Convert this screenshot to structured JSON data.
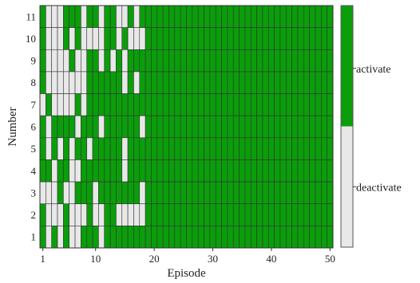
{
  "chart_data": {
    "type": "heatmap",
    "xlabel": "Episode",
    "ylabel": "Number",
    "x_ticks": [
      1,
      10,
      20,
      30,
      40,
      50
    ],
    "x_range": [
      1,
      50
    ],
    "y_categories": [
      "1",
      "2",
      "3",
      "4",
      "5",
      "6",
      "7",
      "8",
      "9",
      "10",
      "11"
    ],
    "legend": {
      "position": "right",
      "entries": [
        {
          "label": "activate",
          "value": 1,
          "color": "#0a9e0a"
        },
        {
          "label": "deactivate",
          "value": 0,
          "color": "#e8e8e8"
        }
      ]
    },
    "colors": {
      "activate": "#0a9e0a",
      "deactivate": "#e8e8e8",
      "grid": "#333333"
    },
    "grid": true,
    "rows": [
      {
        "number": "11",
        "values": [
          1,
          0,
          0,
          0,
          1,
          1,
          1,
          0,
          1,
          1,
          0,
          1,
          1,
          0,
          0,
          1,
          0,
          1,
          1,
          1,
          1,
          1,
          1,
          1,
          1,
          1,
          1,
          1,
          1,
          1,
          1,
          1,
          1,
          1,
          1,
          1,
          1,
          1,
          1,
          1,
          1,
          1,
          1,
          1,
          1,
          1,
          1,
          1,
          1,
          1
        ]
      },
      {
        "number": "10",
        "values": [
          1,
          0,
          0,
          0,
          1,
          0,
          1,
          0,
          0,
          0,
          0,
          1,
          1,
          0,
          1,
          0,
          0,
          0,
          1,
          1,
          1,
          1,
          1,
          1,
          1,
          1,
          1,
          1,
          1,
          1,
          1,
          1,
          1,
          1,
          1,
          1,
          1,
          1,
          1,
          1,
          1,
          1,
          1,
          1,
          1,
          1,
          1,
          1,
          1,
          1
        ]
      },
      {
        "number": "9",
        "values": [
          1,
          0,
          0,
          0,
          0,
          1,
          0,
          0,
          1,
          1,
          0,
          1,
          0,
          1,
          0,
          1,
          1,
          1,
          1,
          1,
          1,
          1,
          1,
          1,
          1,
          1,
          1,
          1,
          1,
          1,
          1,
          1,
          1,
          1,
          1,
          1,
          1,
          1,
          1,
          1,
          1,
          1,
          1,
          1,
          1,
          1,
          1,
          1,
          1,
          1
        ]
      },
      {
        "number": "8",
        "values": [
          1,
          0,
          0,
          0,
          0,
          0,
          0,
          0,
          1,
          1,
          1,
          1,
          1,
          1,
          0,
          1,
          0,
          1,
          1,
          1,
          1,
          1,
          1,
          1,
          1,
          1,
          1,
          1,
          1,
          1,
          1,
          1,
          1,
          1,
          1,
          1,
          1,
          1,
          1,
          1,
          1,
          1,
          1,
          1,
          1,
          1,
          1,
          1,
          1,
          1
        ]
      },
      {
        "number": "7",
        "values": [
          0,
          1,
          0,
          0,
          0,
          0,
          1,
          0,
          1,
          1,
          1,
          1,
          1,
          1,
          1,
          1,
          1,
          1,
          1,
          1,
          1,
          1,
          1,
          1,
          1,
          1,
          1,
          1,
          1,
          1,
          1,
          1,
          1,
          1,
          1,
          1,
          1,
          1,
          1,
          1,
          1,
          1,
          1,
          1,
          1,
          1,
          1,
          1,
          1,
          1
        ]
      },
      {
        "number": "6",
        "values": [
          1,
          0,
          1,
          1,
          1,
          1,
          0,
          1,
          1,
          1,
          0,
          1,
          1,
          1,
          1,
          1,
          1,
          0,
          1,
          1,
          1,
          1,
          1,
          1,
          1,
          1,
          1,
          1,
          1,
          1,
          1,
          1,
          1,
          1,
          1,
          1,
          1,
          1,
          1,
          1,
          1,
          1,
          1,
          1,
          1,
          1,
          1,
          1,
          1,
          1
        ]
      },
      {
        "number": "5",
        "values": [
          1,
          0,
          1,
          0,
          1,
          0,
          1,
          1,
          0,
          1,
          1,
          1,
          1,
          1,
          0,
          1,
          1,
          1,
          1,
          1,
          1,
          1,
          1,
          1,
          1,
          1,
          1,
          1,
          1,
          1,
          1,
          1,
          1,
          1,
          1,
          1,
          1,
          1,
          1,
          1,
          1,
          1,
          1,
          1,
          1,
          1,
          1,
          1,
          1,
          1
        ]
      },
      {
        "number": "4",
        "values": [
          1,
          1,
          0,
          1,
          1,
          0,
          0,
          1,
          1,
          1,
          1,
          1,
          1,
          1,
          0,
          1,
          1,
          1,
          1,
          1,
          1,
          1,
          1,
          1,
          1,
          1,
          1,
          1,
          1,
          1,
          1,
          1,
          1,
          1,
          1,
          1,
          1,
          1,
          1,
          1,
          1,
          1,
          1,
          1,
          1,
          1,
          1,
          1,
          1,
          1
        ]
      },
      {
        "number": "3",
        "values": [
          0,
          0,
          0,
          1,
          0,
          0,
          1,
          1,
          1,
          0,
          1,
          1,
          1,
          1,
          1,
          1,
          1,
          0,
          1,
          1,
          1,
          1,
          1,
          1,
          1,
          1,
          1,
          1,
          1,
          1,
          1,
          1,
          1,
          1,
          1,
          1,
          1,
          1,
          1,
          1,
          1,
          1,
          1,
          1,
          1,
          1,
          1,
          1,
          1,
          1
        ]
      },
      {
        "number": "2",
        "values": [
          1,
          0,
          0,
          0,
          1,
          0,
          0,
          0,
          1,
          0,
          0,
          1,
          1,
          0,
          0,
          0,
          0,
          0,
          1,
          1,
          1,
          1,
          1,
          1,
          1,
          1,
          1,
          1,
          1,
          1,
          1,
          1,
          1,
          1,
          1,
          1,
          1,
          1,
          1,
          1,
          1,
          1,
          1,
          1,
          1,
          1,
          1,
          1,
          1,
          1
        ]
      },
      {
        "number": "1",
        "values": [
          1,
          0,
          1,
          0,
          1,
          0,
          0,
          1,
          1,
          1,
          0,
          1,
          1,
          1,
          1,
          1,
          1,
          1,
          1,
          1,
          1,
          1,
          1,
          1,
          1,
          1,
          1,
          1,
          1,
          1,
          1,
          1,
          1,
          1,
          1,
          1,
          1,
          1,
          1,
          1,
          1,
          1,
          1,
          1,
          1,
          1,
          1,
          1,
          1,
          1
        ]
      }
    ]
  }
}
